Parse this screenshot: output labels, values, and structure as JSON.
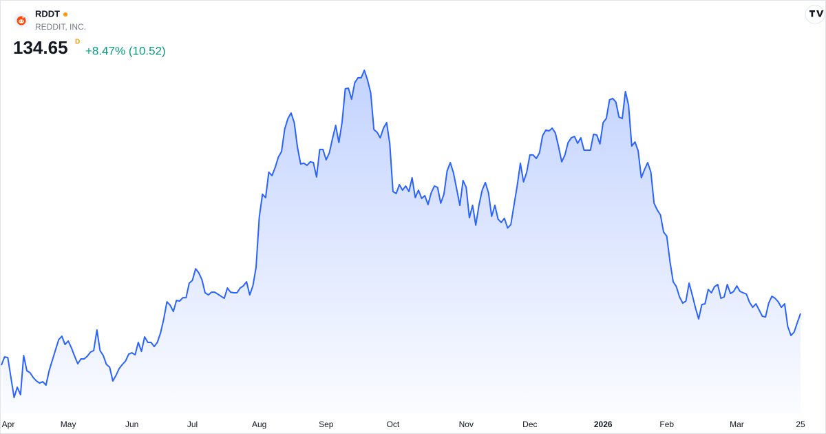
{
  "header": {
    "symbol": "RDDT",
    "name": "REDDIT, INC.",
    "price": "134.65",
    "interval": "D",
    "change": "+8.47% (10.52)"
  },
  "chart_data": {
    "type": "area",
    "color": "#2962ff",
    "categories": [
      "Apr",
      null,
      null,
      null,
      null,
      null,
      null,
      null,
      null,
      null,
      null,
      null,
      null,
      null,
      null,
      null,
      null,
      null,
      null,
      null,
      null,
      "May",
      null,
      null,
      null,
      null,
      null,
      null,
      null,
      null,
      null,
      null,
      null,
      null,
      null,
      null,
      null,
      null,
      null,
      null,
      null,
      "Jun",
      null,
      null,
      null,
      null,
      null,
      null,
      null,
      null,
      null,
      null,
      null,
      null,
      null,
      null,
      null,
      null,
      null,
      null,
      "Jul",
      null,
      null,
      null,
      null,
      null,
      null,
      null,
      null,
      null,
      null,
      null,
      null,
      null,
      null,
      null,
      null,
      null,
      null,
      null,
      null,
      "Aug",
      null,
      null,
      null,
      null,
      null,
      null,
      null,
      null,
      null,
      null,
      null,
      null,
      null,
      null,
      null,
      null,
      null,
      null,
      null,
      null,
      "Sep",
      null,
      null,
      null,
      null,
      null,
      null,
      null,
      null,
      null,
      null,
      null,
      null,
      null,
      null,
      null,
      null,
      null,
      null,
      null,
      null,
      "Oct",
      null,
      null,
      null,
      null,
      null,
      null,
      null,
      null,
      null,
      null,
      null,
      null,
      null,
      null,
      null,
      null,
      null,
      null,
      null,
      null,
      null,
      null,
      "Nov",
      null,
      null,
      null,
      null,
      null,
      null,
      null,
      null,
      null,
      null,
      null,
      null,
      null,
      null,
      null,
      null,
      null,
      null,
      null,
      "Dec",
      null,
      null,
      null,
      null,
      null,
      null,
      null,
      null,
      null,
      null,
      null,
      null,
      null,
      null,
      null,
      null,
      null,
      null,
      null,
      null,
      null,
      null,
      "2026",
      null,
      null,
      null,
      null,
      null,
      null,
      null,
      null,
      null,
      null,
      null,
      null,
      null,
      null,
      null,
      null,
      null,
      null,
      null,
      "Feb",
      null,
      null,
      null,
      null,
      null,
      null,
      null,
      null,
      null,
      null,
      null,
      null,
      null,
      null,
      null,
      null,
      null,
      null,
      null,
      null,
      null,
      "Mar",
      null,
      null,
      null,
      null,
      null,
      null,
      null,
      null,
      null,
      null,
      null,
      null,
      null,
      null,
      null,
      null,
      null,
      null,
      null,
      "25"
    ],
    "values": [
      100.9,
      106.3,
      105.9,
      92.8,
      79.8,
      86.5,
      81.6,
      107.2,
      97.3,
      96.0,
      92.8,
      90.6,
      89.2,
      90.1,
      87.9,
      97.3,
      104.1,
      110.8,
      117.6,
      119.8,
      114.4,
      116.7,
      112.2,
      106.8,
      101.8,
      105.0,
      105.0,
      106.8,
      109.5,
      110.4,
      123.9,
      110.4,
      107.2,
      101.4,
      99.6,
      90.6,
      94.2,
      98.7,
      101.4,
      103.6,
      108.1,
      109.0,
      107.7,
      115.8,
      109.9,
      119.4,
      115.8,
      115.8,
      113.1,
      115.8,
      122.1,
      131.1,
      142.3,
      140.1,
      136.0,
      143.2,
      142.8,
      145.0,
      145.0,
      154.5,
      156.3,
      163.9,
      161.2,
      156.7,
      148.2,
      146.8,
      148.6,
      148.6,
      147.3,
      145.9,
      144.6,
      151.3,
      148.6,
      148.2,
      148.2,
      151.3,
      152.7,
      155.4,
      146.8,
      152.7,
      164.8,
      197.7,
      212.5,
      210.3,
      226.9,
      224.7,
      230.1,
      236.8,
      240.4,
      255.3,
      262.0,
      265.6,
      259.3,
      243.1,
      232.3,
      232.8,
      231.4,
      233.7,
      233.2,
      223.8,
      241.8,
      241.8,
      235.0,
      239.5,
      249.0,
      257.5,
      246.3,
      259.3,
      281.4,
      281.8,
      274.6,
      285.4,
      288.6,
      288.6,
      293.5,
      287.2,
      278.7,
      254.8,
      253.0,
      249.4,
      255.7,
      259.3,
      245.4,
      214.3,
      213.0,
      218.8,
      215.2,
      217.9,
      214.3,
      223.3,
      210.3,
      215.2,
      209.8,
      211.6,
      205.8,
      213.4,
      217.9,
      217.0,
      206.7,
      212.5,
      227.8,
      233.2,
      226.5,
      216.1,
      205.3,
      221.5,
      217.0,
      197.2,
      205.3,
      192.3,
      205.3,
      215.2,
      220.2,
      213.4,
      198.1,
      205.3,
      196.3,
      194.1,
      196.8,
      190.5,
      192.7,
      205.3,
      217.9,
      232.8,
      220.6,
      226.9,
      238.2,
      238.2,
      235.9,
      239.5,
      250.8,
      254.4,
      253.9,
      255.7,
      252.6,
      243.6,
      233.7,
      238.2,
      246.3,
      249.4,
      250.3,
      245.8,
      249.4,
      241.3,
      241.3,
      241.3,
      251.7,
      251.2,
      245.4,
      259.3,
      262.0,
      274.2,
      275.1,
      272.8,
      262.9,
      262.0,
      279.6,
      270.6,
      244.0,
      246.7,
      240.9,
      223.3,
      228.7,
      233.2,
      226.9,
      206.7,
      202.2,
      199.0,
      187.8,
      185.1,
      168.4,
      155.4,
      152.2,
      145.5,
      141.4,
      142.8,
      154.5,
      146.8,
      138.3,
      131.1,
      140.5,
      141.0,
      150.4,
      148.2,
      152.2,
      153.6,
      144.6,
      145.5,
      153.6,
      147.7,
      149.1,
      152.7,
      149.1,
      148.2,
      147.3,
      141.9,
      138.7,
      141.0,
      136.9,
      132.9,
      132.4,
      141.4,
      145.9,
      144.6,
      142.3,
      138.7,
      141.0,
      126.1,
      120.3,
      122.5,
      128.8,
      134.65
    ]
  }
}
